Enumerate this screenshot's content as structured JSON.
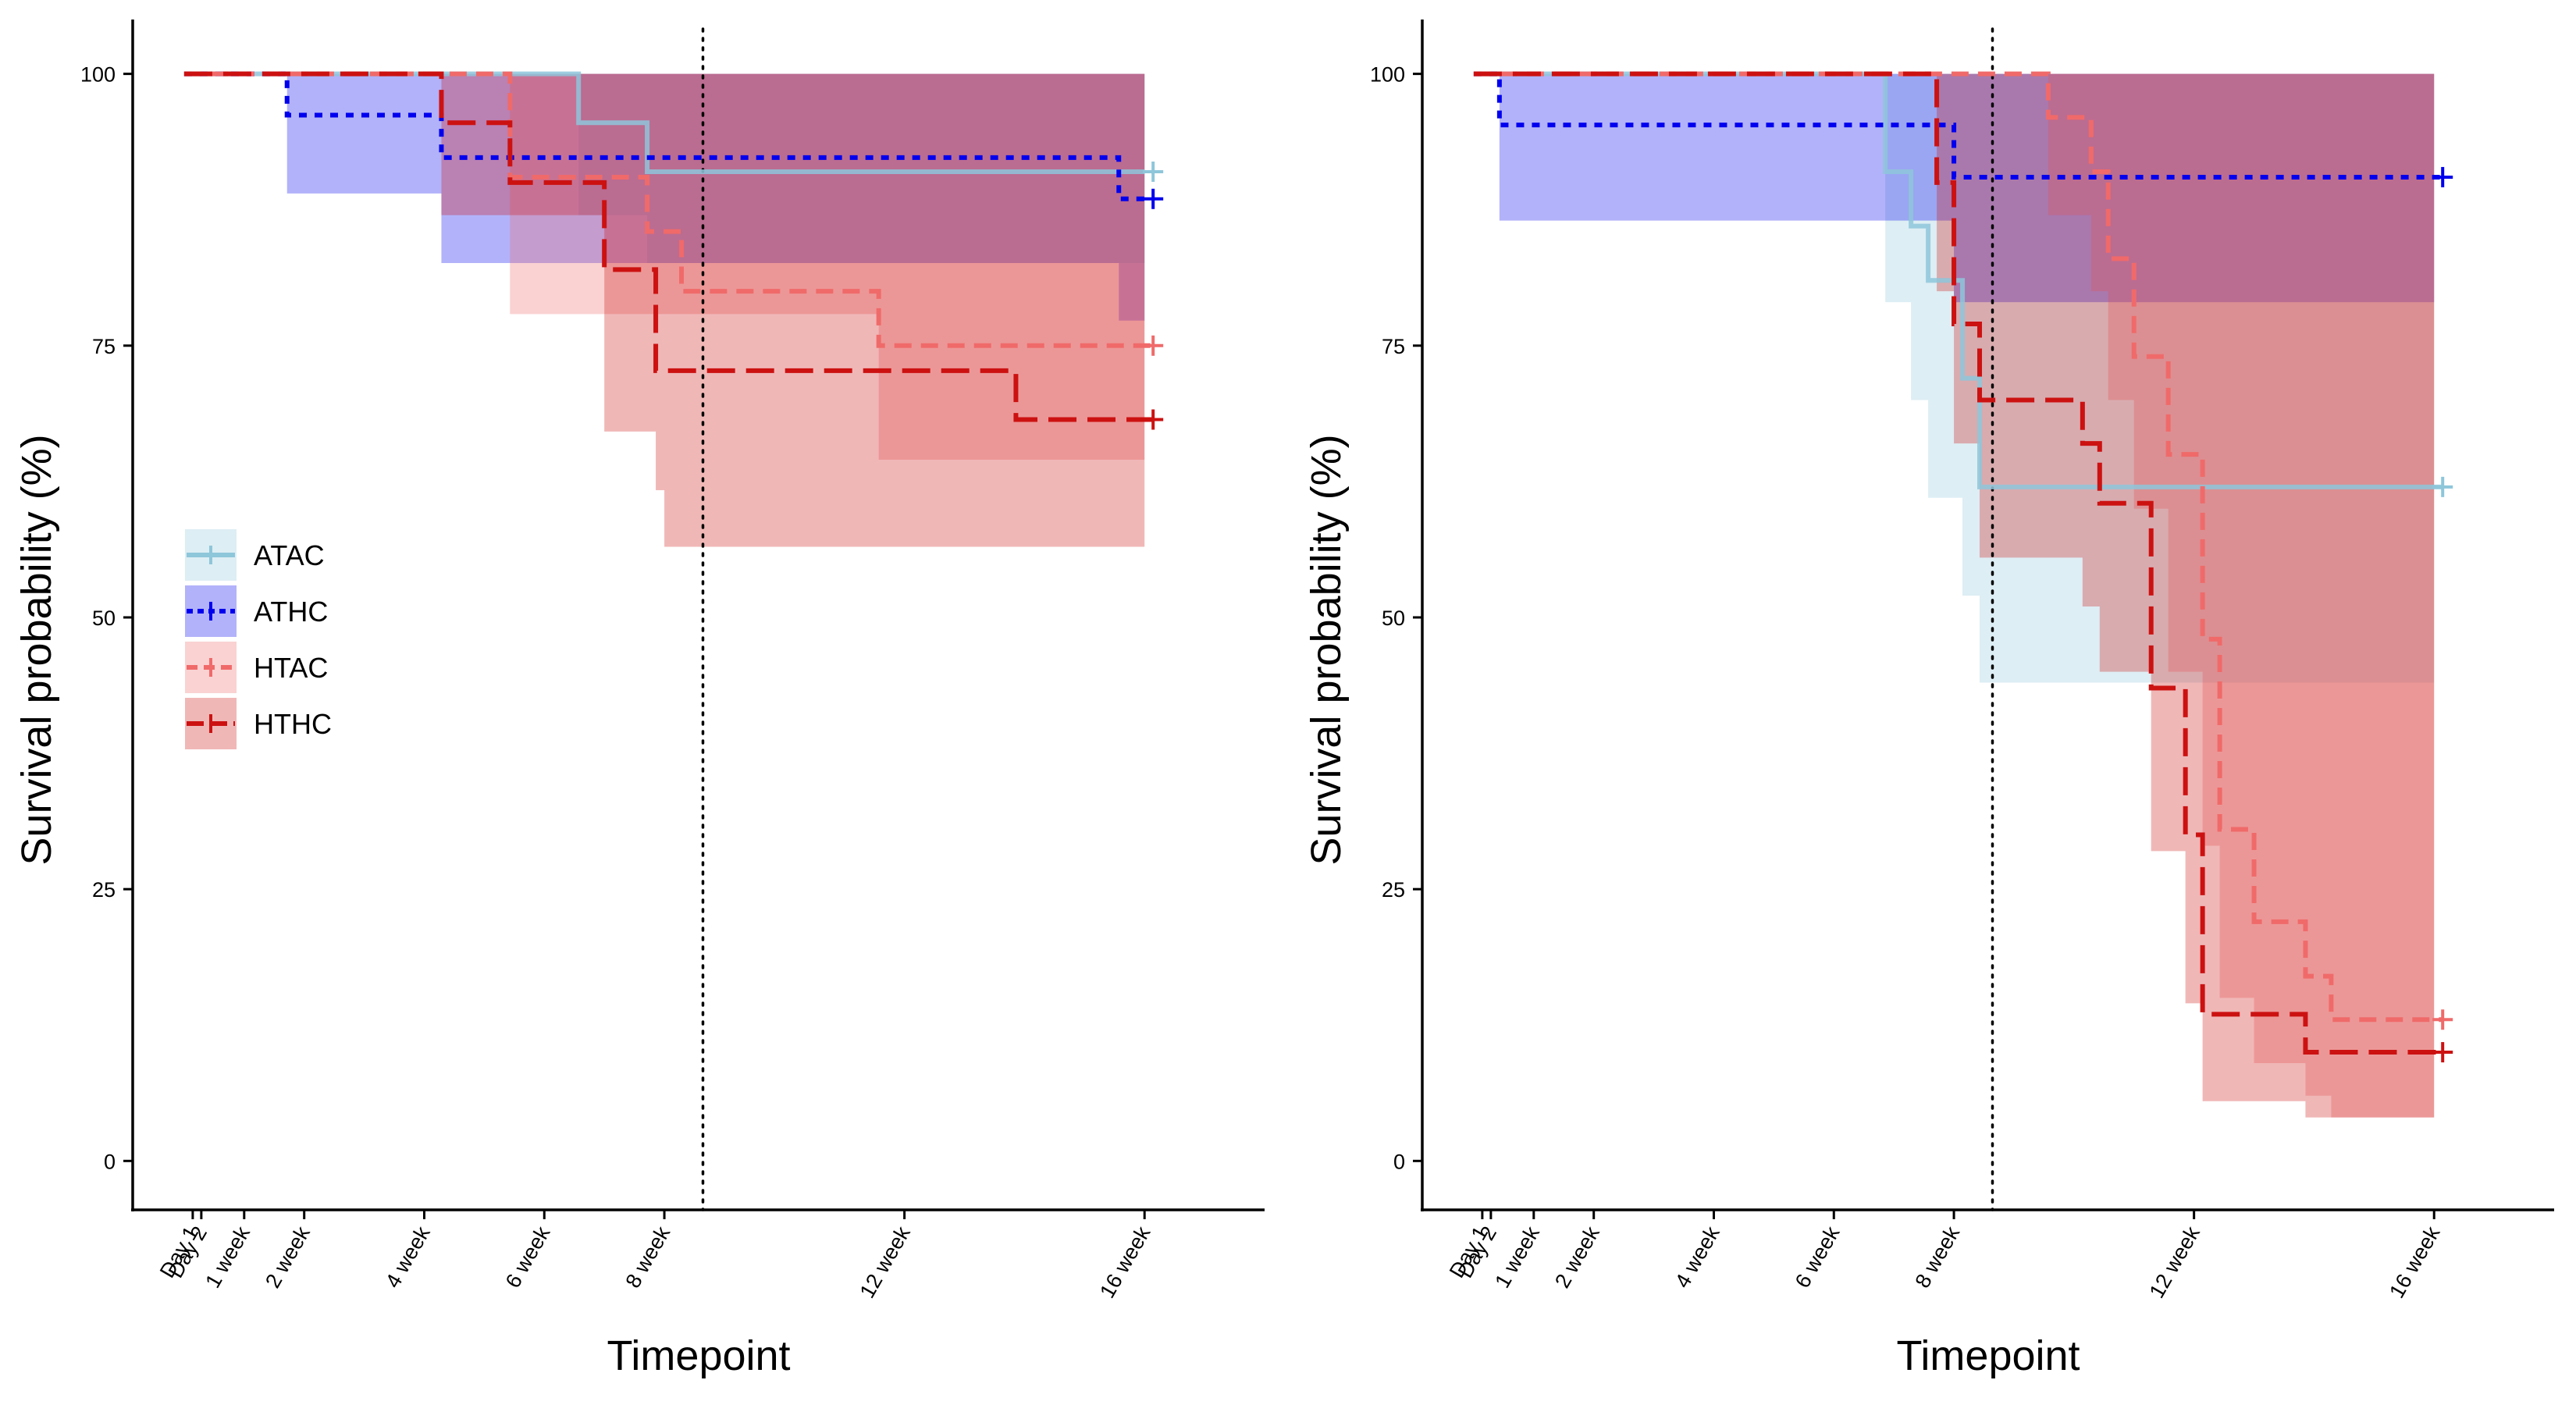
{
  "chart_data": [
    {
      "type": "survival-step",
      "xlabel": "Timepoint",
      "ylabel": "Survival probability (%)",
      "x_unit": "days",
      "x_ticks": [
        {
          "x": 1,
          "label": "Day 1"
        },
        {
          "x": 2,
          "label": "Day 2"
        },
        {
          "x": 7,
          "label": "1 week"
        },
        {
          "x": 14,
          "label": "2 week"
        },
        {
          "x": 28,
          "label": "4 week"
        },
        {
          "x": 42,
          "label": "6 week"
        },
        {
          "x": 56,
          "label": "8 week"
        },
        {
          "x": 84,
          "label": "12 week"
        },
        {
          "x": 112,
          "label": "16 week"
        }
      ],
      "xlim": [
        -6,
        126
      ],
      "y_ticks": [
        0,
        25,
        50,
        75,
        100
      ],
      "ylim": [
        -4.5,
        105
      ],
      "vline_x": 60.5,
      "legend": {
        "placement": "center-left"
      },
      "series": [
        {
          "name": "ATAC",
          "color": "#8EC6DA",
          "dash": "solid",
          "steps": [
            [
              0,
              100
            ],
            [
              45,
              100
            ],
            [
              46,
              95.5
            ],
            [
              54,
              91
            ],
            [
              112,
              91
            ]
          ],
          "lower": [
            [
              0,
              100
            ],
            [
              45,
              100
            ],
            [
              46,
              87
            ],
            [
              54,
              82.6
            ],
            [
              112,
              82.6
            ]
          ],
          "upper": [
            [
              0,
              100
            ],
            [
              112,
              100
            ]
          ],
          "censor_x": [
            113
          ]
        },
        {
          "name": "ATHC",
          "color": "#0000EE",
          "dash": "dot",
          "steps": [
            [
              0,
              100
            ],
            [
              11,
              100
            ],
            [
              12,
              96.2
            ],
            [
              29,
              96.2
            ],
            [
              30,
              92.3
            ],
            [
              108,
              92.3
            ],
            [
              109,
              88.5
            ],
            [
              113,
              88.5
            ]
          ],
          "lower": [
            [
              0,
              100
            ],
            [
              11,
              100
            ],
            [
              12,
              89
            ],
            [
              29,
              89
            ],
            [
              30,
              82.6
            ],
            [
              108,
              82.6
            ],
            [
              109,
              77.3
            ],
            [
              112,
              77.3
            ]
          ],
          "upper": [
            [
              0,
              100
            ],
            [
              112,
              100
            ]
          ],
          "censor_x": [
            113
          ]
        },
        {
          "name": "HTAC",
          "color": "#F06A6A",
          "dash": "dash",
          "steps": [
            [
              0,
              100
            ],
            [
              37,
              100
            ],
            [
              38,
              90.5
            ],
            [
              53,
              90.5
            ],
            [
              54,
              85.5
            ],
            [
              57,
              85.5
            ],
            [
              58,
              80
            ],
            [
              80,
              80
            ],
            [
              81,
              75
            ],
            [
              113,
              75
            ]
          ],
          "lower": [
            [
              0,
              100
            ],
            [
              37,
              100
            ],
            [
              38,
              77.9
            ],
            [
              80,
              77.9
            ],
            [
              81,
              64.5
            ],
            [
              112,
              64.5
            ]
          ],
          "upper": [
            [
              0,
              100
            ],
            [
              112,
              100
            ]
          ],
          "censor_x": [
            113
          ]
        },
        {
          "name": "HTHC",
          "color": "#CC1111",
          "dash": "longdash",
          "steps": [
            [
              0,
              100
            ],
            [
              29,
              100
            ],
            [
              30,
              95.5
            ],
            [
              37,
              95.5
            ],
            [
              38,
              90
            ],
            [
              48,
              90
            ],
            [
              49,
              82
            ],
            [
              54,
              82
            ],
            [
              55,
              72.7
            ],
            [
              96,
              72.7
            ],
            [
              97,
              68.2
            ],
            [
              113,
              68.2
            ]
          ],
          "lower": [
            [
              0,
              100
            ],
            [
              29,
              100
            ],
            [
              30,
              87
            ],
            [
              48,
              87
            ],
            [
              49,
              67.1
            ],
            [
              54,
              67.1
            ],
            [
              55,
              61.7
            ],
            [
              56,
              56.5
            ],
            [
              112,
              56.5
            ]
          ],
          "upper": [
            [
              0,
              100
            ],
            [
              112,
              100
            ]
          ],
          "censor_x": [
            113
          ]
        }
      ]
    },
    {
      "type": "survival-step",
      "xlabel": "Timepoint",
      "ylabel": "Survival probability (%)",
      "x_unit": "days",
      "x_ticks": [
        {
          "x": 1,
          "label": "Day 1"
        },
        {
          "x": 2,
          "label": "Day 2"
        },
        {
          "x": 7,
          "label": "1 week"
        },
        {
          "x": 14,
          "label": "2 week"
        },
        {
          "x": 28,
          "label": "4 week"
        },
        {
          "x": 42,
          "label": "6 week"
        },
        {
          "x": 56,
          "label": "8 week"
        },
        {
          "x": 84,
          "label": "12 week"
        },
        {
          "x": 112,
          "label": "16 week"
        }
      ],
      "xlim": [
        -6,
        126
      ],
      "y_ticks": [
        0,
        25,
        50,
        75,
        100
      ],
      "ylim": [
        -4.5,
        105
      ],
      "vline_x": 60.5,
      "series": [
        {
          "name": "ATAC",
          "color": "#8EC6DA",
          "dash": "solid",
          "steps": [
            [
              0,
              100
            ],
            [
              47,
              100
            ],
            [
              48,
              91
            ],
            [
              50,
              91
            ],
            [
              51,
              86
            ],
            [
              52,
              86
            ],
            [
              53,
              81
            ],
            [
              56,
              81
            ],
            [
              57,
              72
            ],
            [
              58,
              72
            ],
            [
              59,
              62
            ],
            [
              113,
              62
            ]
          ],
          "lower": [
            [
              0,
              100
            ],
            [
              47,
              100
            ],
            [
              48,
              79
            ],
            [
              50,
              79
            ],
            [
              51,
              70
            ],
            [
              52,
              70
            ],
            [
              53,
              61
            ],
            [
              56,
              61
            ],
            [
              57,
              52
            ],
            [
              58,
              52
            ],
            [
              59,
              44
            ],
            [
              112,
              44
            ]
          ],
          "upper": [
            [
              0,
              100
            ],
            [
              112,
              100
            ]
          ],
          "censor_x": [
            113
          ]
        },
        {
          "name": "ATHC",
          "color": "#0000EE",
          "dash": "dot",
          "steps": [
            [
              0,
              100
            ],
            [
              2,
              100
            ],
            [
              3,
              95.3
            ],
            [
              55,
              95.3
            ],
            [
              56,
              90.5
            ],
            [
              113,
              90.5
            ]
          ],
          "lower": [
            [
              0,
              100
            ],
            [
              2,
              100
            ],
            [
              3,
              86.5
            ],
            [
              55,
              86.5
            ],
            [
              56,
              79
            ],
            [
              112,
              79
            ]
          ],
          "upper": [
            [
              0,
              100
            ],
            [
              112,
              100
            ]
          ],
          "censor_x": [
            113
          ]
        },
        {
          "name": "HTAC",
          "color": "#F06A6A",
          "dash": "dash",
          "steps": [
            [
              0,
              100
            ],
            [
              66,
              100
            ],
            [
              67,
              96
            ],
            [
              71,
              96
            ],
            [
              72,
              91
            ],
            [
              73,
              91
            ],
            [
              74,
              83
            ],
            [
              76,
              83
            ],
            [
              77,
              74
            ],
            [
              80,
              74
            ],
            [
              81,
              65
            ],
            [
              84,
              65
            ],
            [
              85,
              48
            ],
            [
              86,
              48
            ],
            [
              87,
              30.5
            ],
            [
              90,
              30.5
            ],
            [
              91,
              22
            ],
            [
              96,
              22
            ],
            [
              97,
              17
            ],
            [
              99,
              17
            ],
            [
              100,
              13
            ],
            [
              113,
              13
            ]
          ],
          "lower": [
            [
              0,
              100
            ],
            [
              66,
              100
            ],
            [
              67,
              87
            ],
            [
              71,
              87
            ],
            [
              72,
              80
            ],
            [
              73,
              80
            ],
            [
              74,
              70
            ],
            [
              76,
              70
            ],
            [
              77,
              60
            ],
            [
              80,
              60
            ],
            [
              81,
              45
            ],
            [
              84,
              45
            ],
            [
              85,
              29
            ],
            [
              86,
              29
            ],
            [
              87,
              15
            ],
            [
              90,
              15
            ],
            [
              91,
              9
            ],
            [
              96,
              9
            ],
            [
              97,
              6
            ],
            [
              99,
              6
            ],
            [
              100,
              4
            ],
            [
              112,
              4
            ]
          ],
          "upper": [
            [
              0,
              100
            ],
            [
              112,
              100
            ]
          ],
          "censor_x": [
            113
          ]
        },
        {
          "name": "HTHC",
          "color": "#CC1111",
          "dash": "longdash",
          "steps": [
            [
              0,
              100
            ],
            [
              53,
              100
            ],
            [
              54,
              90
            ],
            [
              55,
              90
            ],
            [
              56,
              77
            ],
            [
              58,
              77
            ],
            [
              59,
              70
            ],
            [
              70,
              70
            ],
            [
              71,
              66
            ],
            [
              72,
              66
            ],
            [
              73,
              60.5
            ],
            [
              78,
              60.5
            ],
            [
              79,
              43.5
            ],
            [
              82,
              43.5
            ],
            [
              83,
              30
            ],
            [
              84,
              30
            ],
            [
              85,
              13.5
            ],
            [
              96,
              13.5
            ],
            [
              97,
              10
            ],
            [
              113,
              10
            ]
          ],
          "lower": [
            [
              0,
              100
            ],
            [
              53,
              100
            ],
            [
              54,
              80
            ],
            [
              55,
              80
            ],
            [
              56,
              66
            ],
            [
              58,
              66
            ],
            [
              59,
              55.5
            ],
            [
              70,
              55.5
            ],
            [
              71,
              51
            ],
            [
              72,
              51
            ],
            [
              73,
              45
            ],
            [
              78,
              45
            ],
            [
              79,
              28.5
            ],
            [
              82,
              28.5
            ],
            [
              83,
              14.5
            ],
            [
              84,
              14.5
            ],
            [
              85,
              5.5
            ],
            [
              96,
              5.5
            ],
            [
              97,
              4
            ],
            [
              112,
              4
            ]
          ],
          "upper": [
            [
              0,
              100
            ],
            [
              112,
              100
            ]
          ],
          "censor_x": [
            113
          ]
        }
      ]
    }
  ]
}
